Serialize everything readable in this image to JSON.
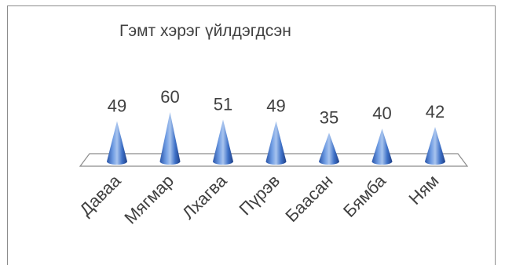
{
  "chart_data": {
    "type": "bar",
    "subtype": "3d-cone",
    "title": "Гэмт хэрэг үйлдэгдсэн",
    "categories": [
      "Даваа",
      "Мягмар",
      "Лхагва",
      "Пүрэв",
      "Баасан",
      "Бямба",
      "Ням"
    ],
    "values": [
      49,
      60,
      51,
      49,
      35,
      40,
      42
    ],
    "xlabel": "",
    "ylabel": "",
    "ylim": [
      0,
      60
    ],
    "grid": false,
    "legend": "none",
    "data_labels": true,
    "colors": {
      "cone_light": "#a8c4ee",
      "cone_mid": "#4a7fd1",
      "cone_dark": "#1f3f86",
      "floor_stroke": "#8c8c8c",
      "text": "#404040"
    }
  }
}
